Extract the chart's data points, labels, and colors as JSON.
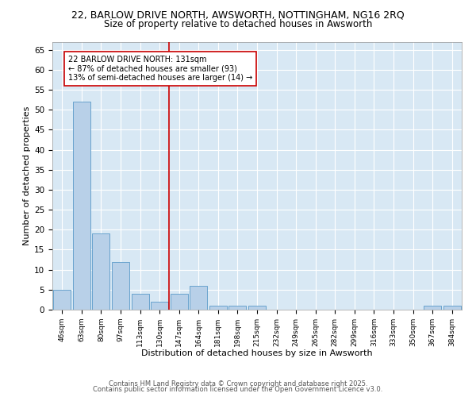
{
  "title_line1": "22, BARLOW DRIVE NORTH, AWSWORTH, NOTTINGHAM, NG16 2RQ",
  "title_line2": "Size of property relative to detached houses in Awsworth",
  "xlabel": "Distribution of detached houses by size in Awsworth",
  "ylabel": "Number of detached properties",
  "bar_labels": [
    "46sqm",
    "63sqm",
    "80sqm",
    "97sqm",
    "113sqm",
    "130sqm",
    "147sqm",
    "164sqm",
    "181sqm",
    "198sqm",
    "215sqm",
    "232sqm",
    "249sqm",
    "265sqm",
    "282sqm",
    "299sqm",
    "316sqm",
    "333sqm",
    "350sqm",
    "367sqm",
    "384sqm"
  ],
  "bar_values": [
    5,
    52,
    19,
    12,
    4,
    2,
    4,
    6,
    1,
    1,
    1,
    0,
    0,
    0,
    0,
    0,
    0,
    0,
    0,
    1,
    1
  ],
  "bar_color": "#b8d0e8",
  "bar_edge_color": "#5a9ac8",
  "background_color": "#d8e8f4",
  "vline_x": 5.5,
  "vline_color": "#cc0000",
  "ylim": [
    0,
    67
  ],
  "yticks": [
    0,
    5,
    10,
    15,
    20,
    25,
    30,
    35,
    40,
    45,
    50,
    55,
    60,
    65
  ],
  "annotation_text": "22 BARLOW DRIVE NORTH: 131sqm\n← 87% of detached houses are smaller (93)\n13% of semi-detached houses are larger (14) →",
  "footer_line1": "Contains HM Land Registry data © Crown copyright and database right 2025.",
  "footer_line2": "Contains public sector information licensed under the Open Government Licence v3.0."
}
